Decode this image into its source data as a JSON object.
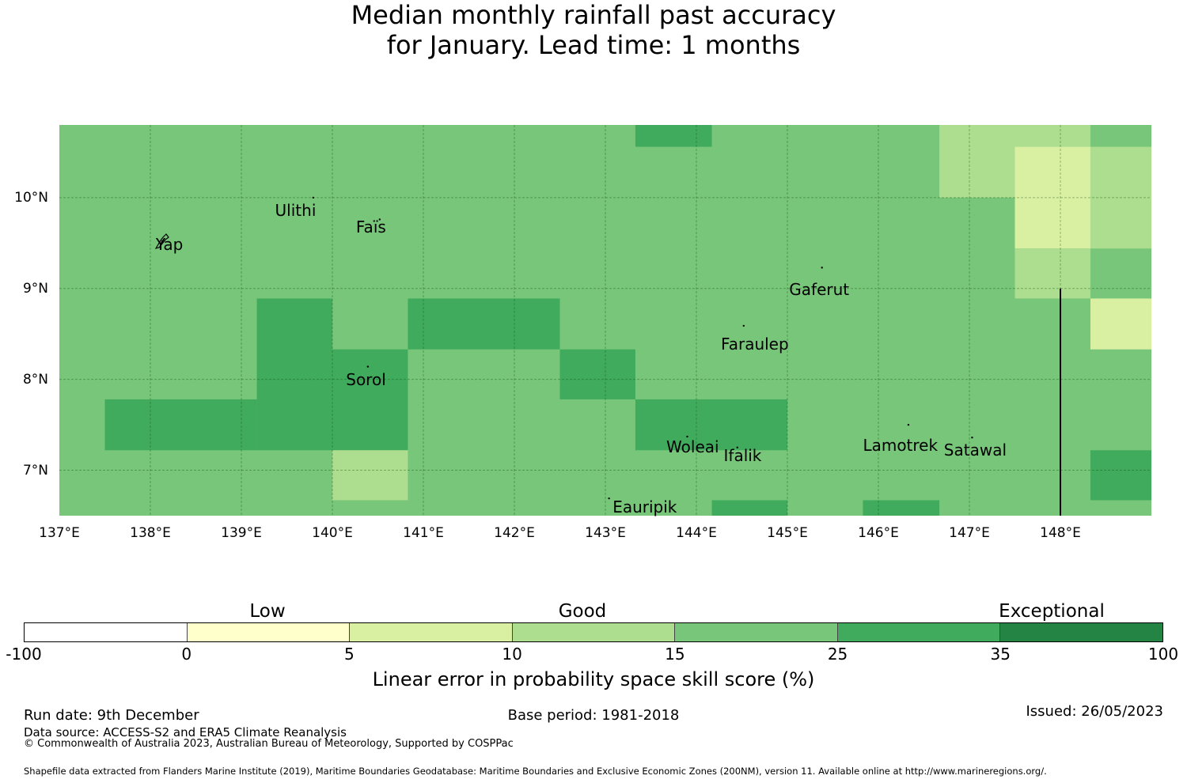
{
  "title": {
    "line1": "Median monthly rainfall past accuracy",
    "line2": "for January. Lead time: 1 months"
  },
  "map": {
    "lon_ticks": [
      "137°E",
      "138°E",
      "139°E",
      "140°E",
      "141°E",
      "142°E",
      "143°E",
      "144°E",
      "145°E",
      "146°E",
      "147°E",
      "148°E"
    ],
    "lat_ticks": [
      "10°N",
      "9°N",
      "8°N",
      "7°N"
    ],
    "lon_range": [
      137.0,
      149.0
    ],
    "lat_range": [
      6.5,
      10.8
    ],
    "grid_step_lon": 0.833,
    "grid_step_lat": 0.556,
    "default_class": 4,
    "cells": [
      {
        "lon": [
          143.33,
          144.17
        ],
        "lat": [
          10.56,
          10.8
        ],
        "class": 5
      },
      {
        "lon": [
          146.67,
          147.5
        ],
        "lat": [
          10.0,
          10.8
        ],
        "class": 3
      },
      {
        "lon": [
          147.5,
          148.33
        ],
        "lat": [
          10.56,
          10.8
        ],
        "class": 3
      },
      {
        "lon": [
          147.5,
          148.33
        ],
        "lat": [
          9.44,
          10.56
        ],
        "class": 2
      },
      {
        "lon": [
          148.33,
          149.0
        ],
        "lat": [
          9.44,
          10.56
        ],
        "class": 3
      },
      {
        "lon": [
          147.5,
          148.33
        ],
        "lat": [
          8.89,
          9.44
        ],
        "class": 3
      },
      {
        "lon": [
          148.33,
          149.0
        ],
        "lat": [
          8.33,
          8.89
        ],
        "class": 2
      },
      {
        "lon": [
          139.17,
          140.0
        ],
        "lat": [
          7.78,
          8.89
        ],
        "class": 5
      },
      {
        "lon": [
          140.83,
          142.5
        ],
        "lat": [
          8.33,
          8.89
        ],
        "class": 5
      },
      {
        "lon": [
          140.0,
          140.83
        ],
        "lat": [
          7.22,
          8.33
        ],
        "class": 5
      },
      {
        "lon": [
          142.5,
          143.33
        ],
        "lat": [
          7.78,
          8.33
        ],
        "class": 5
      },
      {
        "lon": [
          137.5,
          139.17
        ],
        "lat": [
          7.22,
          7.78
        ],
        "class": 5
      },
      {
        "lon": [
          139.17,
          140.0
        ],
        "lat": [
          7.22,
          7.78
        ],
        "class": 5
      },
      {
        "lon": [
          143.33,
          145.0
        ],
        "lat": [
          7.22,
          7.78
        ],
        "class": 5
      },
      {
        "lon": [
          140.0,
          140.83
        ],
        "lat": [
          6.67,
          7.22
        ],
        "class": 3
      },
      {
        "lon": [
          148.33,
          149.0
        ],
        "lat": [
          6.67,
          7.22
        ],
        "class": 5
      },
      {
        "lon": [
          144.17,
          145.0
        ],
        "lat": [
          6.5,
          6.67
        ],
        "class": 5
      },
      {
        "lon": [
          145.83,
          146.67
        ],
        "lat": [
          6.5,
          6.67
        ],
        "class": 5
      }
    ],
    "boundary_line": {
      "lon": 148.0,
      "lat": [
        6.5,
        9.0
      ]
    },
    "places": [
      {
        "name": "Ulithi",
        "lon": 139.79,
        "lat": 10.0,
        "label_lon": 139.37,
        "label_lat": 9.85
      },
      {
        "name": "Faïs",
        "lon": 140.52,
        "lat": 9.76,
        "label_lon": 140.26,
        "label_lat": 9.67
      },
      {
        "name": "Yap",
        "lon": 138.13,
        "lat": 9.52,
        "label_lon": 138.06,
        "label_lat": 9.48
      },
      {
        "name": "Gaferut",
        "lon": 145.38,
        "lat": 9.23,
        "label_lon": 145.02,
        "label_lat": 8.98
      },
      {
        "name": "Faraulep",
        "lon": 144.52,
        "lat": 8.59,
        "label_lon": 144.27,
        "label_lat": 8.38
      },
      {
        "name": "Sorol",
        "lon": 140.39,
        "lat": 8.14,
        "label_lon": 140.15,
        "label_lat": 7.99
      },
      {
        "name": "Woleai",
        "lon": 143.9,
        "lat": 7.37,
        "label_lon": 143.67,
        "label_lat": 7.25
      },
      {
        "name": "Ifalik",
        "lon": 144.45,
        "lat": 7.25,
        "label_lon": 144.3,
        "label_lat": 7.15
      },
      {
        "name": "Lamotrek",
        "lon": 146.33,
        "lat": 7.5,
        "label_lon": 145.83,
        "label_lat": 7.27
      },
      {
        "name": "Satawal",
        "lon": 147.03,
        "lat": 7.36,
        "label_lon": 146.72,
        "label_lat": 7.21
      },
      {
        "name": "Eauripik",
        "lon": 143.04,
        "lat": 6.69,
        "label_lon": 143.08,
        "label_lat": 6.59
      }
    ]
  },
  "colorbar": {
    "category_labels": [
      "Low",
      "Good",
      "Exceptional"
    ],
    "ticks": [
      "-100",
      "0",
      "5",
      "10",
      "15",
      "25",
      "35",
      "100"
    ],
    "colors": [
      "#ffffff",
      "#ffffcc",
      "#d9f0a3",
      "#addd8e",
      "#78c679",
      "#41ab5d",
      "#238443"
    ],
    "title": "Linear error in probability space skill score (%)"
  },
  "footer": {
    "run_date": "Run date: 9th December",
    "base_period": "Base period: 1981-2018",
    "issued": "Issued: 26/05/2023",
    "data_source": "Data source: ACCESS-S2 and ERA5 Climate Reanalysis",
    "copyright": "© Commonwealth of Australia 2023, Australian Bureau of Meteorology, Supported by COSPPac",
    "shapefile": "Shapefile data extracted from Flanders Marine Institute (2019), Maritime Boundaries Geodatabase: Maritime Boundaries and Exclusive Economic Zones (200NM), version 11. Available online at http://www.marineregions.org/."
  }
}
